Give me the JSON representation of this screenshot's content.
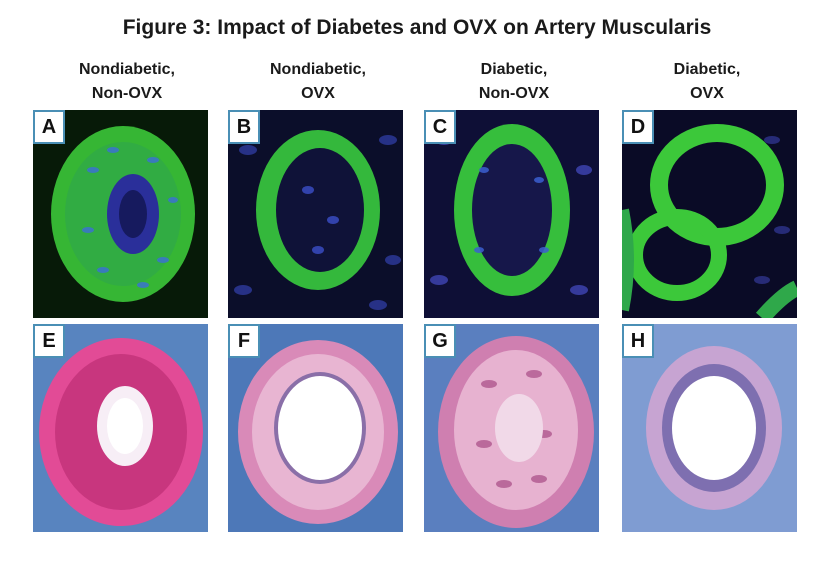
{
  "figure": {
    "title": "Figure 3: Impact of Diabetes and OVX on Artery Muscularis"
  },
  "columns": [
    {
      "line1": "Nondiabetic,",
      "line2": "Non-OVX"
    },
    {
      "line1": "Nondiabetic,",
      "line2": "OVX"
    },
    {
      "line1": "Diabetic,",
      "line2": "Non-OVX"
    },
    {
      "line1": "Diabetic,",
      "line2": "OVX"
    }
  ],
  "panels": {
    "top": [
      "A",
      "B",
      "C",
      "D"
    ],
    "bottom": [
      "E",
      "F",
      "G",
      "H"
    ]
  },
  "colors": {
    "fluor_background": "#0b0e2a",
    "fluor_green": "#3cc83a",
    "nuclei_blue": "#3b4fc8",
    "stain_background": "#4f79b8",
    "stain_pink": "#e24b96",
    "label_border": "#4a8fb5"
  }
}
